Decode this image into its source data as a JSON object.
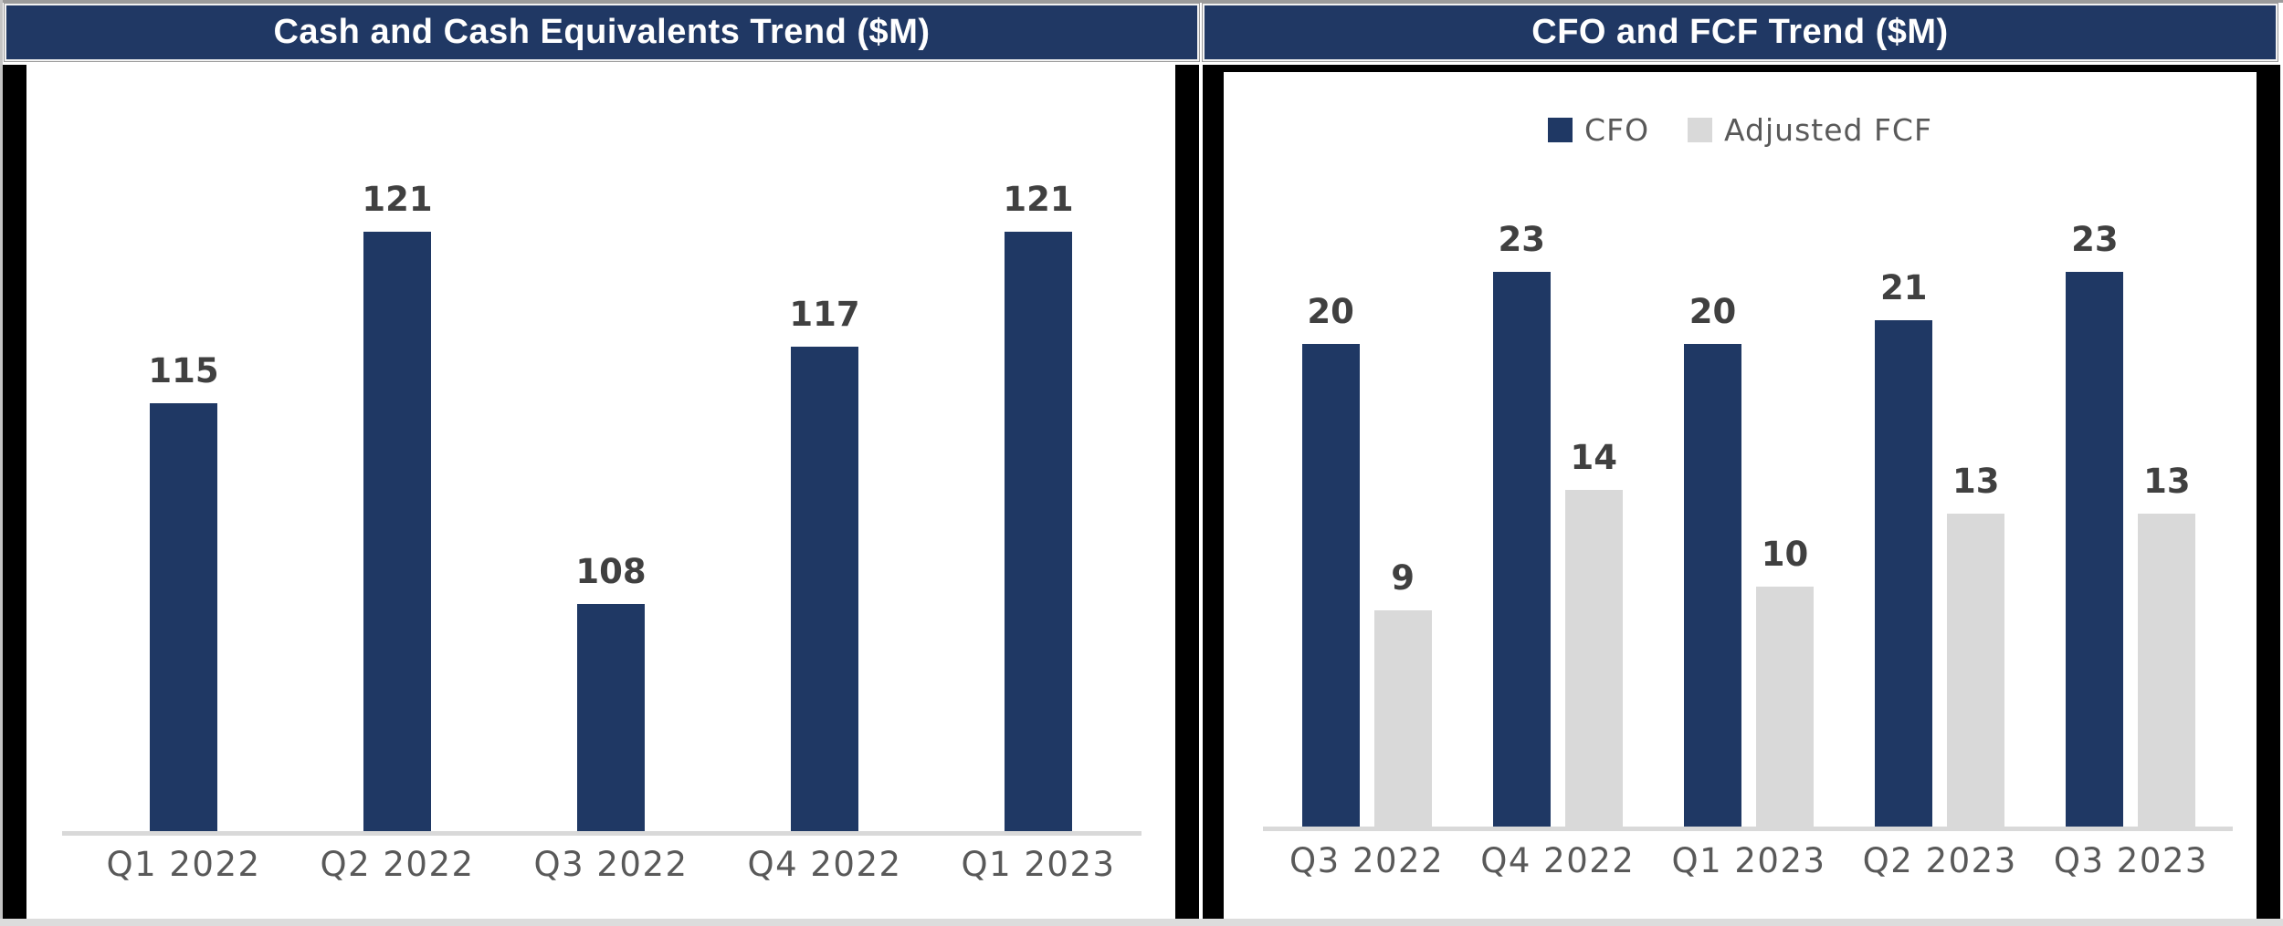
{
  "colors": {
    "header_bg": "#203864",
    "header_text": "#ffffff",
    "bar_navy": "#1f3864",
    "bar_gray": "#d9d9d9",
    "data_label": "#404040",
    "axis_label": "#595959",
    "axis_line": "#d9d9d9",
    "frame_black": "#000000"
  },
  "chart_data": [
    {
      "type": "bar",
      "title": "Cash and Cash Equivalents Trend ($M)",
      "categories": [
        "Q1 2022",
        "Q2 2022",
        "Q3 2022",
        "Q4 2022",
        "Q1 2023"
      ],
      "values": [
        115,
        121,
        108,
        117,
        121
      ],
      "bar_color": "#1f3864",
      "data_labels": [
        115,
        121,
        108,
        117,
        121
      ],
      "xlabel": "",
      "ylabel": "",
      "axis": {
        "y_min": 100,
        "y_max": 124,
        "gridlines": false,
        "y_axis_visible": false,
        "x_axis_line": true
      },
      "legend": null
    },
    {
      "type": "bar",
      "title": "CFO and FCF Trend ($M)",
      "categories": [
        "Q3 2022",
        "Q4 2022",
        "Q1 2023",
        "Q2 2023",
        "Q3 2023"
      ],
      "series": [
        {
          "name": "CFO",
          "color": "#1f3864",
          "values": [
            20,
            23,
            20,
            21,
            23
          ]
        },
        {
          "name": "Adjusted FCF",
          "color": "#d9d9d9",
          "values": [
            9,
            14,
            10,
            13,
            13
          ]
        }
      ],
      "xlabel": "",
      "ylabel": "",
      "axis": {
        "y_min": 0,
        "y_max": 24.5,
        "gridlines": false,
        "y_axis_visible": false,
        "x_axis_line": true
      },
      "legend_position": "top-center"
    }
  ]
}
